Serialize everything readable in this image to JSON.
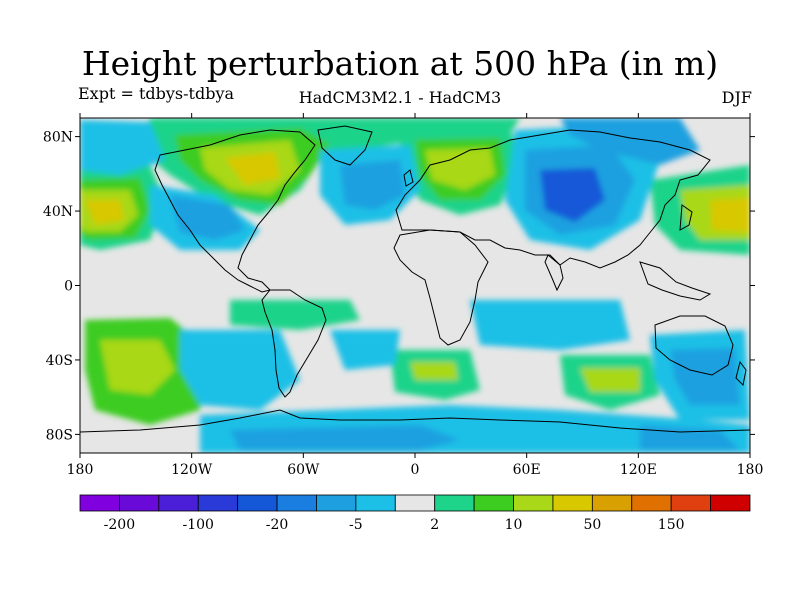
{
  "title": "Height perturbation at 500 hPa (in m)",
  "subtitle_left": "Expt = tdbys-tdbya",
  "subtitle_center": "HadCM3M2.1 - HadCM3",
  "subtitle_right": "DJF",
  "lat_ticks": [
    "80N",
    "40N",
    "0",
    "40S",
    "80S"
  ],
  "lon_ticks": [
    "180",
    "120W",
    "60W",
    "0",
    "60E",
    "120E",
    "180"
  ],
  "colorbar": {
    "colors": [
      "#8000e0",
      "#6a0ad8",
      "#4b1fd8",
      "#2a3ad8",
      "#1458d8",
      "#1a7ee0",
      "#1ea0e0",
      "#1cc0e6",
      "#e6e6e6",
      "#1ed38a",
      "#3dcc20",
      "#a8d818",
      "#d8c800",
      "#d8a000",
      "#e07000",
      "#e04010",
      "#d00000"
    ],
    "labels": [
      "-200",
      "-100",
      "-20",
      "-5",
      "2",
      "10",
      "50",
      "150"
    ]
  }
}
